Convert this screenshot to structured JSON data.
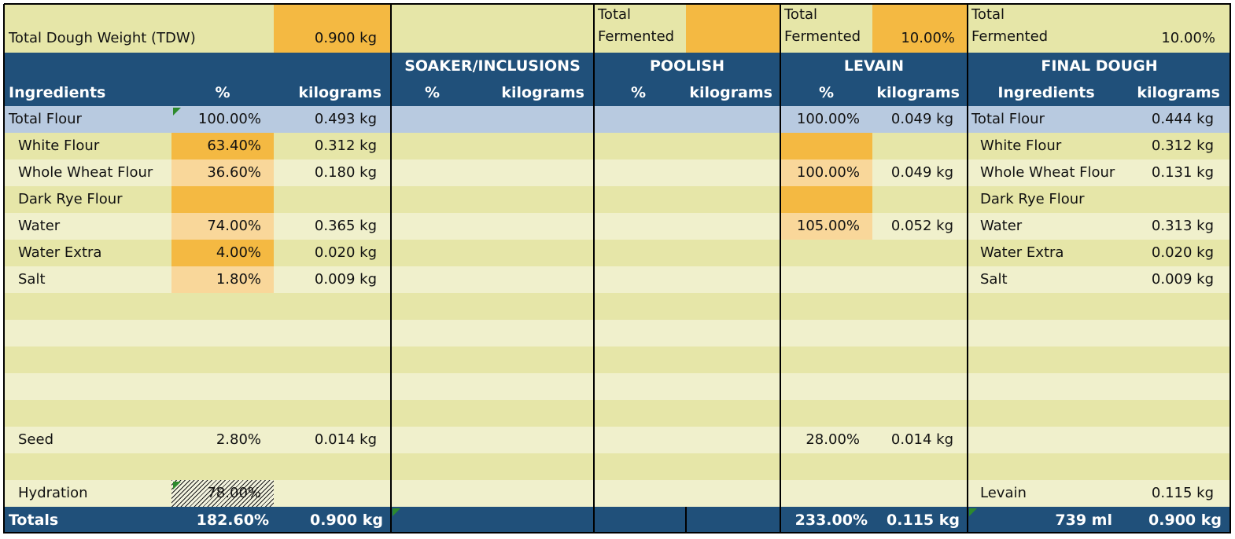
{
  "colors": {
    "header_blue": "#20507a",
    "band_dark": "#e6e6a8",
    "band_light": "#f0f0cc",
    "total_flour_row": "#b8cae0",
    "orange_strong": "#f4b942",
    "orange_light": "#f9d79a",
    "white_text": "#ffffff"
  },
  "top": {
    "tdw_label": "Total Dough Weight (TDW)",
    "tdw_value": "0.900 kg",
    "poolish_total_label_1": "Total",
    "poolish_total_label_2": "Fermented",
    "poolish_total_value": "",
    "levain_total_label_1": "Total",
    "levain_total_label_2": "Fermented",
    "levain_total_value": "10.00%",
    "final_total_label_1": "Total",
    "final_total_label_2": "Fermented",
    "final_total_value": "10.00%"
  },
  "sections": {
    "soaker": "SOAKER/INCLUSIONS",
    "poolish": "POOLISH",
    "levain": "LEVAIN",
    "final": "FINAL DOUGH"
  },
  "headers": {
    "ingredients": "Ingredients",
    "percent": "%",
    "kilograms": "kilograms",
    "soaker_percent": "%",
    "soaker_kilograms": "kilograms",
    "poolish_percent": "%",
    "poolish_kilograms": "kilograms",
    "levain_percent": "%",
    "levain_kilograms": "kilograms",
    "final_ingredients": "Ingredients",
    "final_kilograms": "kilograms"
  },
  "rows": [
    {
      "name": "Total Flour",
      "pct": "100.00%",
      "kg": "0.493 kg",
      "lev_pct": "100.00%",
      "lev_kg": "0.049 kg",
      "final_name": "Total Flour",
      "final_kg": "0.444 kg"
    },
    {
      "name": "White Flour",
      "pct": "63.40%",
      "kg": "0.312 kg",
      "lev_pct": "",
      "lev_kg": "",
      "final_name": "White Flour",
      "final_kg": "0.312 kg"
    },
    {
      "name": "Whole Wheat Flour",
      "pct": "36.60%",
      "kg": "0.180 kg",
      "lev_pct": "100.00%",
      "lev_kg": "0.049 kg",
      "final_name": "Whole Wheat Flour",
      "final_kg": "0.131 kg"
    },
    {
      "name": "Dark Rye Flour",
      "pct": "",
      "kg": "",
      "lev_pct": "",
      "lev_kg": "",
      "final_name": "Dark Rye Flour",
      "final_kg": ""
    },
    {
      "name": "Water",
      "pct": "74.00%",
      "kg": "0.365 kg",
      "lev_pct": "105.00%",
      "lev_kg": "0.052 kg",
      "final_name": "Water",
      "final_kg": "0.313 kg"
    },
    {
      "name": "Water Extra",
      "pct": "4.00%",
      "kg": "0.020 kg",
      "lev_pct": "",
      "lev_kg": "",
      "final_name": "Water Extra",
      "final_kg": "0.020 kg"
    },
    {
      "name": "Salt",
      "pct": "1.80%",
      "kg": "0.009 kg",
      "lev_pct": "",
      "lev_kg": "",
      "final_name": "Salt",
      "final_kg": "0.009 kg"
    },
    {
      "name": "",
      "pct": "",
      "kg": "",
      "lev_pct": "",
      "lev_kg": "",
      "final_name": "",
      "final_kg": ""
    },
    {
      "name": "",
      "pct": "",
      "kg": "",
      "lev_pct": "",
      "lev_kg": "",
      "final_name": "",
      "final_kg": ""
    },
    {
      "name": "",
      "pct": "",
      "kg": "",
      "lev_pct": "",
      "lev_kg": "",
      "final_name": "",
      "final_kg": ""
    },
    {
      "name": "",
      "pct": "",
      "kg": "",
      "lev_pct": "",
      "lev_kg": "",
      "final_name": "",
      "final_kg": ""
    },
    {
      "name": "",
      "pct": "",
      "kg": "",
      "lev_pct": "",
      "lev_kg": "",
      "final_name": "",
      "final_kg": ""
    },
    {
      "name": "Seed",
      "pct": "2.80%",
      "kg": "0.014 kg",
      "lev_pct": "28.00%",
      "lev_kg": "0.014 kg",
      "final_name": "",
      "final_kg": ""
    },
    {
      "name": "",
      "pct": "",
      "kg": "",
      "lev_pct": "",
      "lev_kg": "",
      "final_name": "",
      "final_kg": ""
    },
    {
      "name": "Hydration",
      "pct": "78.00%",
      "kg": "",
      "lev_pct": "",
      "lev_kg": "",
      "final_name": "Levain",
      "final_kg": "0.115 kg"
    }
  ],
  "totals": {
    "label": "Totals",
    "pct": "182.60%",
    "kg": "0.900 kg",
    "levain_pct": "233.00%",
    "levain_kg": "0.115 kg",
    "final_ml": "739 ml",
    "final_kg": "0.900 kg"
  }
}
